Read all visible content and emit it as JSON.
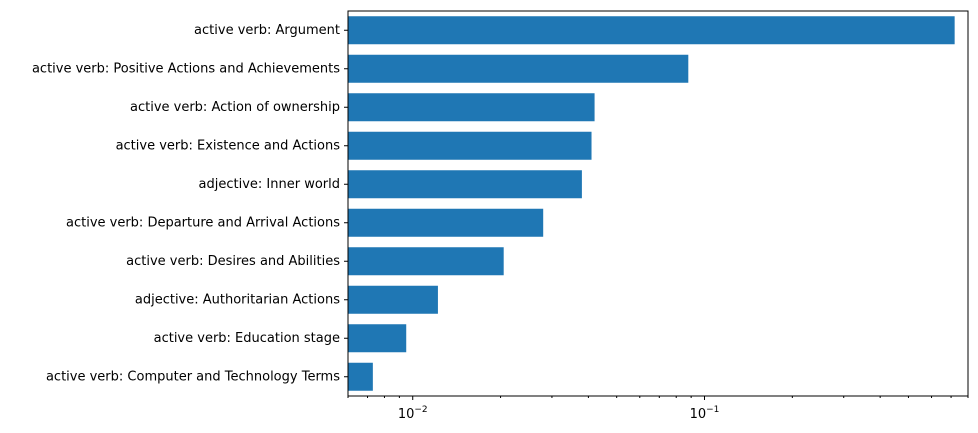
{
  "chart_data": {
    "type": "bar",
    "orientation": "horizontal",
    "categories": [
      "active verb: Argument",
      "active verb: Positive Actions and Achievements",
      "active verb: Action of ownership",
      "active verb: Existence and Actions",
      "adjective: Inner world",
      "active verb: Departure and Arrival Actions",
      "active verb: Desires and Abilities",
      "adjective: Authoritarian Actions",
      "active verb: Education stage",
      "active verb: Computer and Technology Terms"
    ],
    "values": [
      0.72,
      0.088,
      0.042,
      0.041,
      0.038,
      0.028,
      0.0205,
      0.0122,
      0.0095,
      0.0073
    ],
    "x_scale": "log",
    "xlim": [
      0.006,
      0.8
    ],
    "x_ticks": [
      {
        "value": 0.01,
        "base": "10",
        "exp": "−2"
      },
      {
        "value": 0.1,
        "base": "10",
        "exp": "−1"
      }
    ],
    "title": "",
    "xlabel": "",
    "ylabel": "",
    "grid": false,
    "bar_color": "#1f77b4"
  }
}
